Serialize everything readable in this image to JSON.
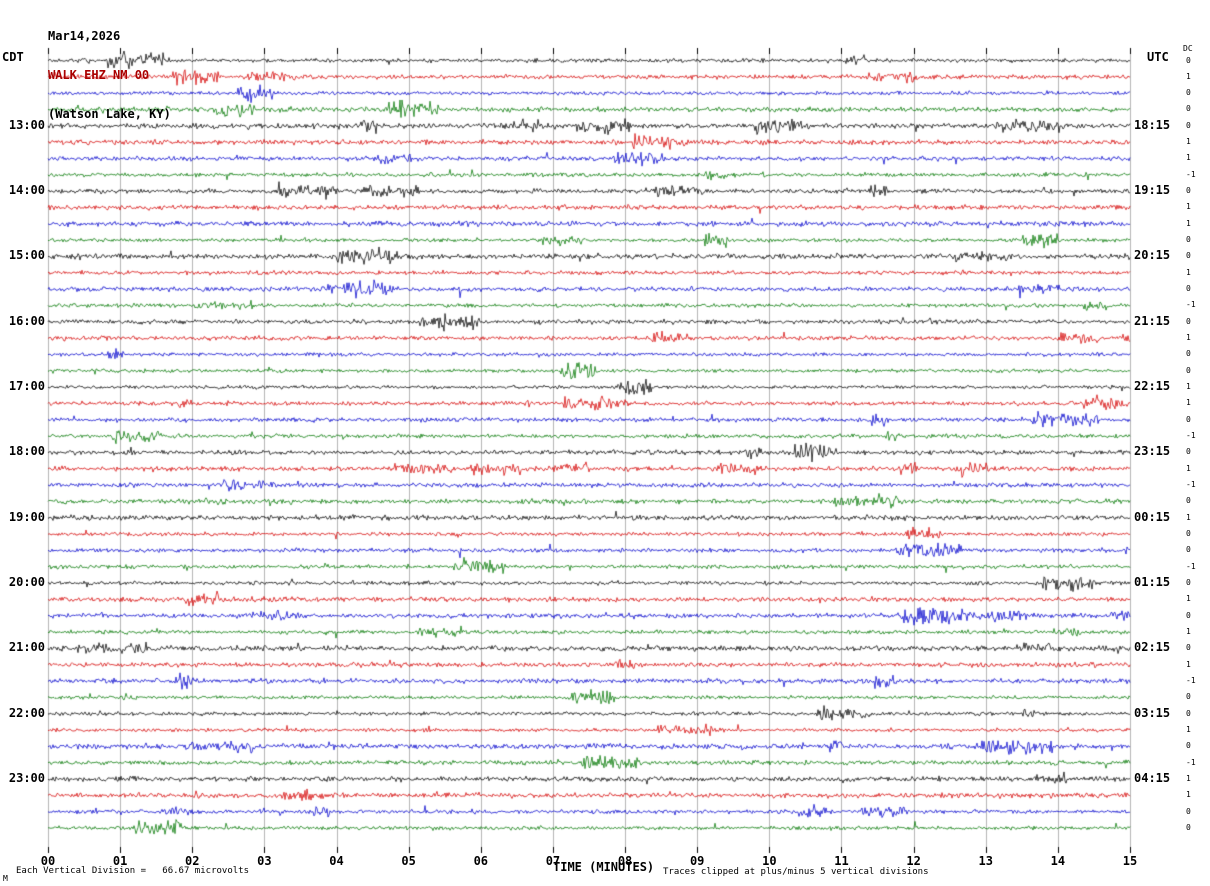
{
  "title": {
    "date": "Mar14,2026",
    "station": "WALK EHZ NM 00",
    "location": "(Watson Lake, KY)"
  },
  "colors": {
    "station_title": "#aa0000",
    "grid": "#b4b4b4",
    "tick": "#000000"
  },
  "axes": {
    "left_header": "CDT",
    "right_header": "UTC",
    "dc_header": "DC",
    "x_label": "TIME (MINUTES)",
    "x_ticks": [
      "00",
      "01",
      "02",
      "03",
      "04",
      "05",
      "06",
      "07",
      "08",
      "09",
      "10",
      "11",
      "12",
      "13",
      "14",
      "15"
    ]
  },
  "footer": {
    "scale_note": "Each Vertical Division =   66.67 microvolts",
    "clip_note": "Traces clipped at plus/minus 5 vertical divisions",
    "corner_mark": "M"
  },
  "chart_data": {
    "type": "line",
    "description": "Helicorder (webicorder) seismogram: 48 consecutive 15-minute seismic noise traces (4 rows per hour), colors cycling black/red/blue/green, vertical minute gridlines",
    "x_label": "TIME (MINUTES)",
    "x_range": [
      0,
      15
    ],
    "minutes_per_row": 15,
    "rows_per_hour": 4,
    "clip": "plus/minus 5 vertical divisions",
    "division_scale": "66.67 microvolts",
    "trace_colors": [
      "#000000",
      "#d40000",
      "#0000cc",
      "#007700"
    ],
    "rows": [
      {
        "cdt": "",
        "utc": "",
        "dc": "0"
      },
      {
        "cdt": "",
        "utc": "",
        "dc": "1"
      },
      {
        "cdt": "",
        "utc": "",
        "dc": "0"
      },
      {
        "cdt": "",
        "utc": "",
        "dc": "0"
      },
      {
        "cdt": "13:00",
        "utc": "18:15",
        "dc": "0"
      },
      {
        "cdt": "",
        "utc": "",
        "dc": "1"
      },
      {
        "cdt": "",
        "utc": "",
        "dc": "1"
      },
      {
        "cdt": "",
        "utc": "",
        "dc": "-1"
      },
      {
        "cdt": "14:00",
        "utc": "19:15",
        "dc": "0"
      },
      {
        "cdt": "",
        "utc": "",
        "dc": "1"
      },
      {
        "cdt": "",
        "utc": "",
        "dc": "1"
      },
      {
        "cdt": "",
        "utc": "",
        "dc": "0"
      },
      {
        "cdt": "15:00",
        "utc": "20:15",
        "dc": "0"
      },
      {
        "cdt": "",
        "utc": "",
        "dc": "1"
      },
      {
        "cdt": "",
        "utc": "",
        "dc": "0"
      },
      {
        "cdt": "",
        "utc": "",
        "dc": "-1"
      },
      {
        "cdt": "16:00",
        "utc": "21:15",
        "dc": "0"
      },
      {
        "cdt": "",
        "utc": "",
        "dc": "1"
      },
      {
        "cdt": "",
        "utc": "",
        "dc": "0"
      },
      {
        "cdt": "",
        "utc": "",
        "dc": "0"
      },
      {
        "cdt": "17:00",
        "utc": "22:15",
        "dc": "1"
      },
      {
        "cdt": "",
        "utc": "",
        "dc": "1"
      },
      {
        "cdt": "",
        "utc": "",
        "dc": "0"
      },
      {
        "cdt": "",
        "utc": "",
        "dc": "-1"
      },
      {
        "cdt": "18:00",
        "utc": "23:15",
        "dc": "0"
      },
      {
        "cdt": "",
        "utc": "",
        "dc": "1"
      },
      {
        "cdt": "",
        "utc": "",
        "dc": "-1"
      },
      {
        "cdt": "",
        "utc": "",
        "dc": "0"
      },
      {
        "cdt": "19:00",
        "utc": "00:15",
        "dc": "1"
      },
      {
        "cdt": "",
        "utc": "",
        "dc": "0"
      },
      {
        "cdt": "",
        "utc": "",
        "dc": "0"
      },
      {
        "cdt": "",
        "utc": "",
        "dc": "-1"
      },
      {
        "cdt": "20:00",
        "utc": "01:15",
        "dc": "0"
      },
      {
        "cdt": "",
        "utc": "",
        "dc": "1"
      },
      {
        "cdt": "",
        "utc": "",
        "dc": "0"
      },
      {
        "cdt": "",
        "utc": "",
        "dc": "1"
      },
      {
        "cdt": "21:00",
        "utc": "02:15",
        "dc": "0"
      },
      {
        "cdt": "",
        "utc": "",
        "dc": "1"
      },
      {
        "cdt": "",
        "utc": "",
        "dc": "-1"
      },
      {
        "cdt": "",
        "utc": "",
        "dc": "0"
      },
      {
        "cdt": "22:00",
        "utc": "03:15",
        "dc": "0"
      },
      {
        "cdt": "",
        "utc": "",
        "dc": "1"
      },
      {
        "cdt": "",
        "utc": "",
        "dc": "0"
      },
      {
        "cdt": "",
        "utc": "",
        "dc": "-1"
      },
      {
        "cdt": "23:00",
        "utc": "04:15",
        "dc": "1"
      },
      {
        "cdt": "",
        "utc": "",
        "dc": "1"
      },
      {
        "cdt": "",
        "utc": "",
        "dc": "0"
      },
      {
        "cdt": "",
        "utc": "",
        "dc": "0"
      }
    ]
  }
}
